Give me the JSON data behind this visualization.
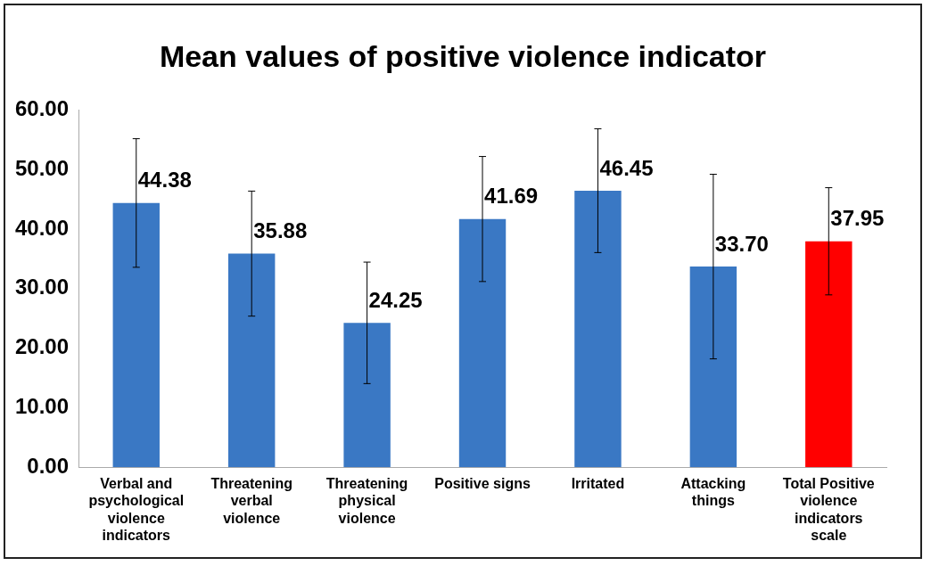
{
  "chart_data": {
    "type": "bar",
    "title": "Mean values of positive violence indicator",
    "categories": [
      "Verbal and psychological violence indicators",
      "Threatening verbal violence",
      "Threatening physical violence",
      "Positive signs",
      "Irritated",
      "Attacking things",
      "Total Positive violence indicators scale"
    ],
    "values": [
      44.38,
      35.88,
      24.25,
      41.69,
      46.45,
      33.7,
      37.95
    ],
    "value_labels": [
      "44.38",
      "35.88",
      "24.25",
      "41.69",
      "46.45",
      "33.70",
      "37.95"
    ],
    "colors": [
      "#3a78c4",
      "#3a78c4",
      "#3a78c4",
      "#3a78c4",
      "#3a78c4",
      "#3a78c4",
      "#ff0000"
    ],
    "errors": [
      10.8,
      10.5,
      10.2,
      10.5,
      10.4,
      15.5,
      9.0
    ],
    "ylim": [
      0,
      60
    ],
    "yticks": [
      {
        "value": 0,
        "label": "0.00"
      },
      {
        "value": 10,
        "label": "10.00"
      },
      {
        "value": 20,
        "label": "20.00"
      },
      {
        "value": 30,
        "label": "30.00"
      },
      {
        "value": 40,
        "label": "40.00"
      },
      {
        "value": 50,
        "label": "50.00"
      },
      {
        "value": 60,
        "label": "60.00"
      }
    ],
    "grid": false,
    "legend": false
  }
}
